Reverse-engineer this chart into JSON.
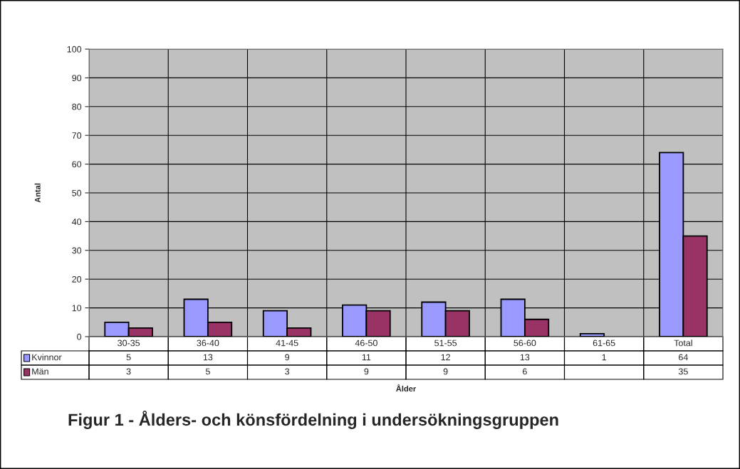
{
  "chart_data": {
    "type": "bar",
    "title": "Figur 1 - Ålders- och könsfördelning i undersökningsgruppen",
    "xlabel": "Ålder",
    "ylabel": "Antal",
    "categories": [
      "30-35",
      "36-40",
      "41-45",
      "46-50",
      "51-55",
      "56-60",
      "61-65",
      "Total"
    ],
    "series": [
      {
        "name": "Kvinnor",
        "color": "#9999ff",
        "values": [
          5,
          13,
          9,
          11,
          12,
          13,
          1,
          64
        ]
      },
      {
        "name": "Män",
        "color": "#993366",
        "values": [
          3,
          5,
          3,
          9,
          9,
          6,
          null,
          35
        ]
      }
    ],
    "ylim": [
      0,
      100
    ],
    "yticks": [
      0,
      10,
      20,
      30,
      40,
      50,
      60,
      70,
      80,
      90,
      100
    ],
    "grid": true,
    "legend": "bottom",
    "data_labels": true
  }
}
